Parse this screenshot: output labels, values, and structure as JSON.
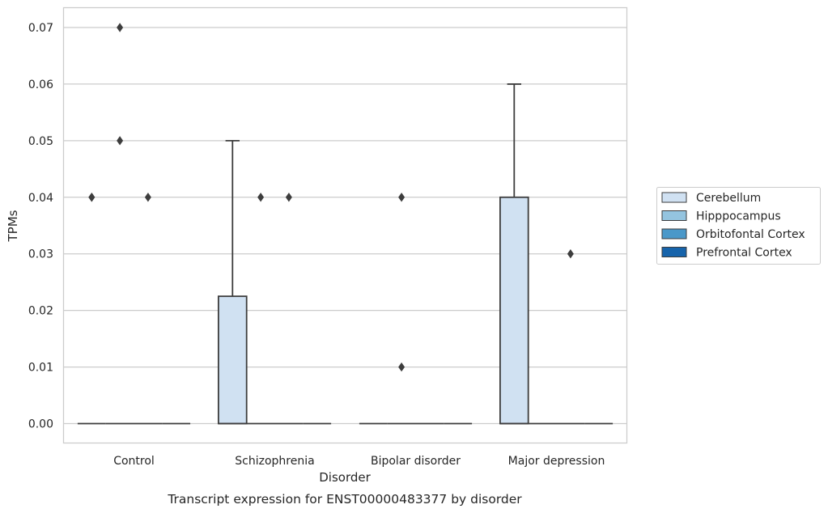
{
  "chart_data": {
    "type": "box",
    "title": "",
    "caption": "Transcript expression for ENST00000483377 by disorder",
    "xlabel": "Disorder",
    "ylabel": "TPMs",
    "ylim": [
      -0.0035,
      0.0735
    ],
    "yticks": [
      0.0,
      0.01,
      0.02,
      0.03,
      0.04,
      0.05,
      0.06,
      0.07
    ],
    "ytick_labels": [
      "0.00",
      "0.01",
      "0.02",
      "0.03",
      "0.04",
      "0.05",
      "0.06",
      "0.07"
    ],
    "grid": "horizontal",
    "legend_position": "right",
    "categories": [
      "Control",
      "Schizophrenia",
      "Bipolar disorder",
      "Major depression"
    ],
    "series": [
      {
        "name": "Cerebellum",
        "color": "#d0e1f2",
        "boxes": [
          {
            "q1": 0.0,
            "median": 0.0,
            "q3": 0.0,
            "whislo": 0.0,
            "whishi": 0.0,
            "fliers": [
              0.04,
              0.04
            ]
          },
          {
            "q1": 0.0,
            "median": 0.0,
            "q3": 0.0225,
            "whislo": 0.0,
            "whishi": 0.05,
            "fliers": []
          },
          {
            "q1": 0.0,
            "median": 0.0,
            "q3": 0.0,
            "whislo": 0.0,
            "whishi": 0.0,
            "fliers": []
          },
          {
            "q1": 0.0,
            "median": 0.0,
            "q3": 0.04,
            "whislo": 0.0,
            "whishi": 0.06,
            "fliers": []
          }
        ]
      },
      {
        "name": "Hipppocampus",
        "color": "#94c4df",
        "boxes": [
          {
            "q1": 0.0,
            "median": 0.0,
            "q3": 0.0,
            "whislo": 0.0,
            "whishi": 0.0,
            "fliers": [
              0.07,
              0.05
            ]
          },
          {
            "q1": 0.0,
            "median": 0.0,
            "q3": 0.0,
            "whislo": 0.0,
            "whishi": 0.0,
            "fliers": [
              0.04
            ]
          },
          {
            "q1": 0.0,
            "median": 0.0,
            "q3": 0.0,
            "whislo": 0.0,
            "whishi": 0.0,
            "fliers": [
              0.04,
              0.01
            ]
          },
          {
            "q1": 0.0,
            "median": 0.0,
            "q3": 0.0,
            "whislo": 0.0,
            "whishi": 0.0,
            "fliers": []
          }
        ]
      },
      {
        "name": "Orbitofontal Cortex",
        "color": "#4a98c9",
        "boxes": [
          {
            "q1": 0.0,
            "median": 0.0,
            "q3": 0.0,
            "whislo": 0.0,
            "whishi": 0.0,
            "fliers": [
              0.04
            ]
          },
          {
            "q1": 0.0,
            "median": 0.0,
            "q3": 0.0,
            "whislo": 0.0,
            "whishi": 0.0,
            "fliers": [
              0.04
            ]
          },
          {
            "q1": 0.0,
            "median": 0.0,
            "q3": 0.0,
            "whislo": 0.0,
            "whishi": 0.0,
            "fliers": []
          },
          {
            "q1": 0.0,
            "median": 0.0,
            "q3": 0.0,
            "whislo": 0.0,
            "whishi": 0.0,
            "fliers": [
              0.03
            ]
          }
        ]
      },
      {
        "name": "Prefrontal Cortex",
        "color": "#1764ab",
        "boxes": [
          {
            "q1": 0.0,
            "median": 0.0,
            "q3": 0.0,
            "whislo": 0.0,
            "whishi": 0.0,
            "fliers": []
          },
          {
            "q1": 0.0,
            "median": 0.0,
            "q3": 0.0,
            "whislo": 0.0,
            "whishi": 0.0,
            "fliers": []
          },
          {
            "q1": 0.0,
            "median": 0.0,
            "q3": 0.0,
            "whislo": 0.0,
            "whishi": 0.0,
            "fliers": []
          },
          {
            "q1": 0.0,
            "median": 0.0,
            "q3": 0.0,
            "whislo": 0.0,
            "whishi": 0.0,
            "fliers": []
          }
        ]
      }
    ]
  }
}
